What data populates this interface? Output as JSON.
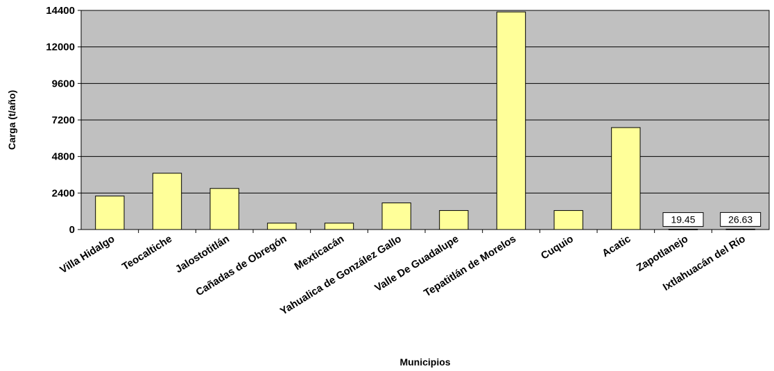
{
  "chart_data": {
    "type": "bar",
    "title": "",
    "xlabel": "Municipios",
    "ylabel": "Carga (t/año)",
    "ylim": [
      0,
      14400
    ],
    "yticks": [
      0,
      2400,
      4800,
      7200,
      9600,
      12000,
      14400
    ],
    "ytick_labels": [
      "0",
      "2400",
      "4800",
      "7200",
      "9600",
      "12000",
      "14400"
    ],
    "grid": true,
    "legend": "none",
    "categories": [
      "Villa Hidalgo",
      "Teocaltiche",
      "Jalostotitlán",
      "Cañadas de Obregón",
      "Mexticacán",
      "Yahualica de González Gallo",
      "Valle De Guadalupe",
      "Tepatitlán de Morelos",
      "Cuquio",
      "Acatic",
      "Zapotlanejo",
      "Ixtlahuacán del Río"
    ],
    "values": [
      2200,
      3700,
      2700,
      420,
      420,
      1750,
      1250,
      14300,
      1250,
      6700,
      19.45,
      26.63
    ],
    "data_labels": [
      "",
      "",
      "",
      "",
      "",
      "",
      "",
      "",
      "",
      "",
      "19.45",
      "26.63"
    ],
    "colors": {
      "plot_bg": "#c0c0c0",
      "bar_fill": "#ffff99",
      "bar_stroke": "#000000",
      "grid": "#000000"
    }
  }
}
